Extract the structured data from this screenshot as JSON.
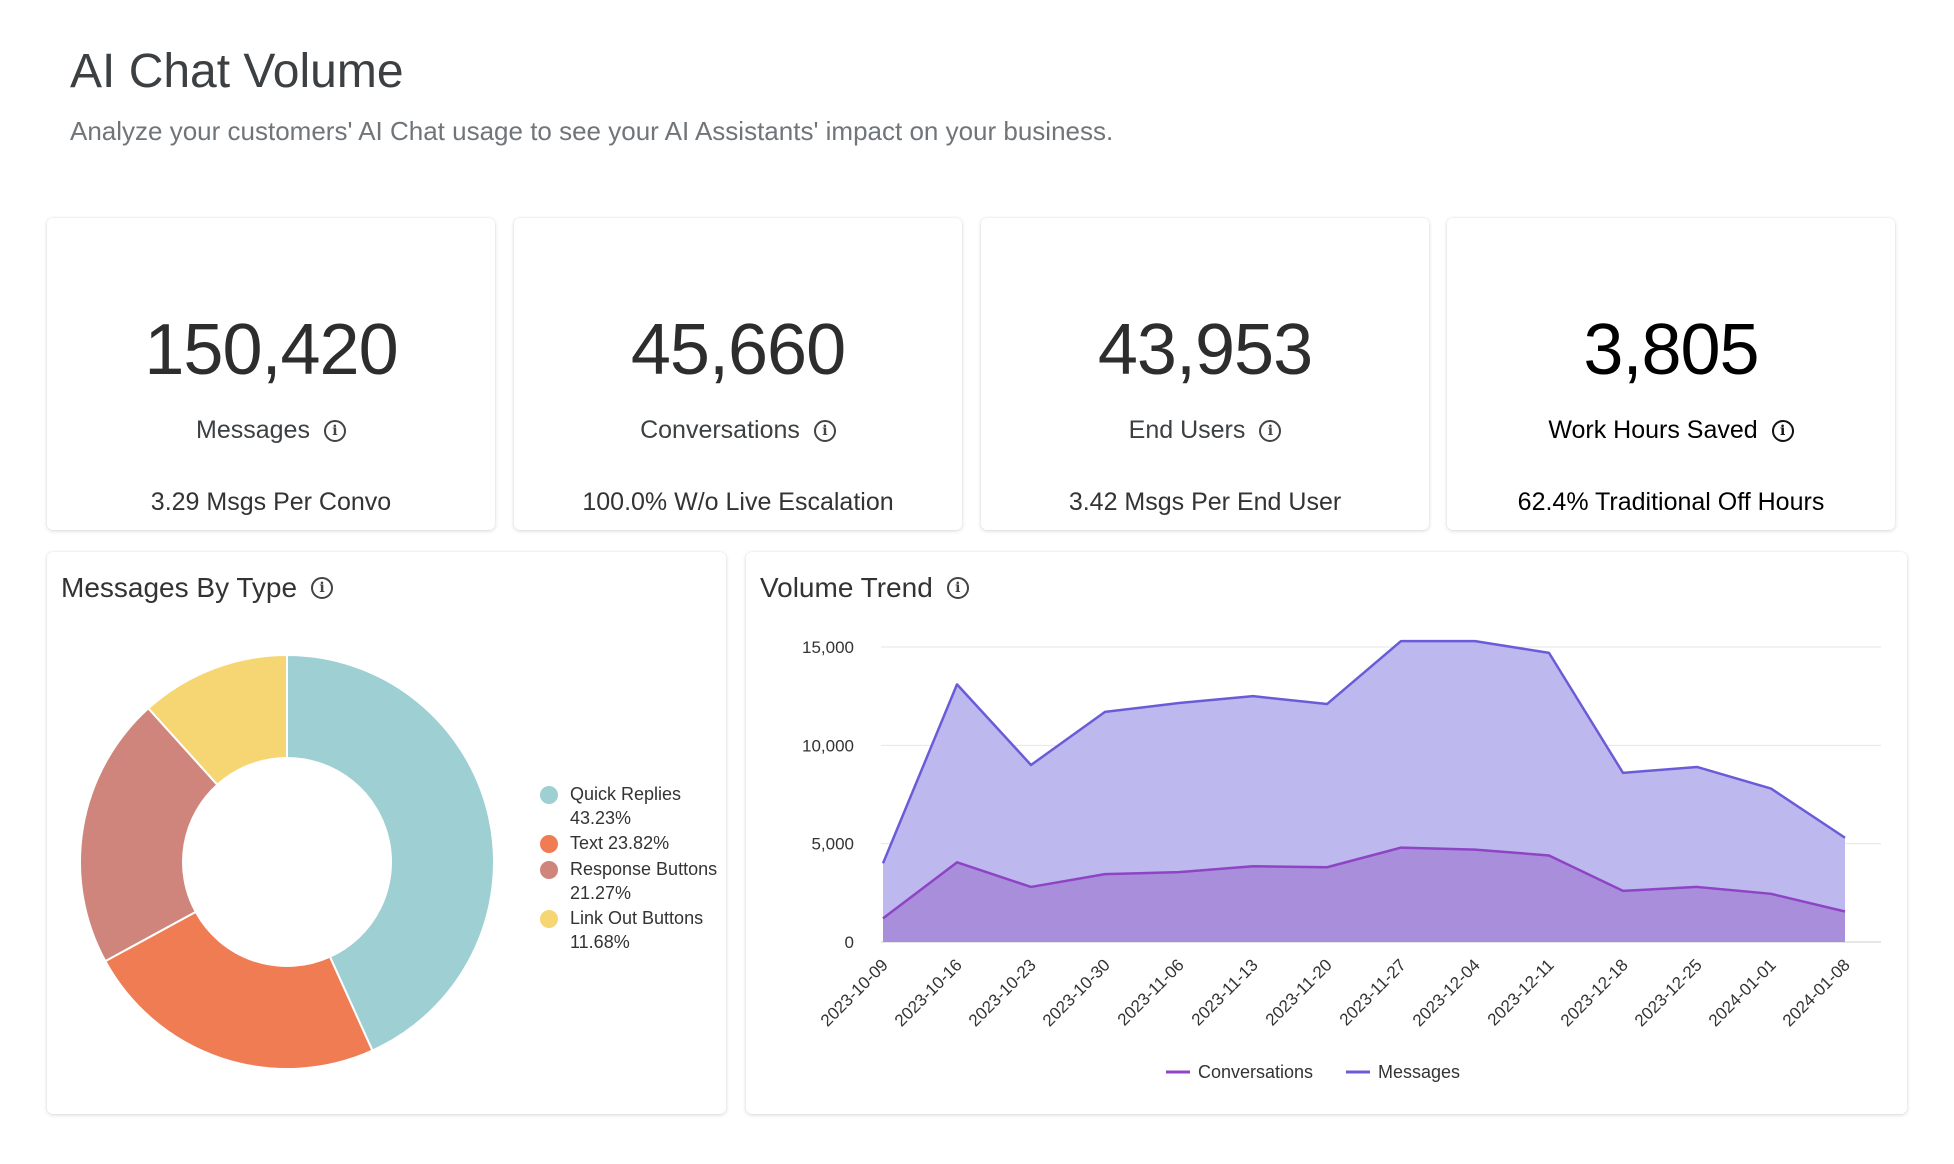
{
  "header": {
    "title": "AI Chat Volume",
    "subtitle": "Analyze your customers' AI Chat usage to see your AI Assistants' impact on your business."
  },
  "kpis": [
    {
      "value": "150,420",
      "label": "Messages",
      "sub": "3.29 Msgs Per Convo"
    },
    {
      "value": "45,660",
      "label": "Conversations",
      "sub": "100.0% W/o Live Escalation"
    },
    {
      "value": "43,953",
      "label": "End Users",
      "sub": "3.42 Msgs Per End User"
    },
    {
      "value": "3,805",
      "label": "Work Hours Saved",
      "sub": "62.4% Traditional Off Hours"
    }
  ],
  "messages_by_type": {
    "title": "Messages By Type",
    "legend": [
      {
        "label": "Quick Replies",
        "pct": "43.23%",
        "color": "#9dcfd3"
      },
      {
        "label": "Text",
        "pct": "23.82%",
        "color": "#ef7c53"
      },
      {
        "label": "Response Buttons",
        "pct": "21.27%",
        "color": "#cf857b"
      },
      {
        "label": "Link Out Buttons",
        "pct": "11.68%",
        "color": "#f6d672"
      }
    ]
  },
  "volume_trend": {
    "title": "Volume Trend",
    "legend": [
      {
        "label": "Conversations",
        "color": "#8e44c4"
      },
      {
        "label": "Messages",
        "color": "#6a5cd8"
      }
    ]
  },
  "chart_data": [
    {
      "type": "pie",
      "title": "Messages By Type",
      "donut": true,
      "categories": [
        "Quick Replies",
        "Text",
        "Response Buttons",
        "Link Out Buttons"
      ],
      "values": [
        43.23,
        23.82,
        21.27,
        11.68
      ],
      "colors": [
        "#9dcfd3",
        "#ef7c53",
        "#cf857b",
        "#f6d672"
      ],
      "legend_placement": "right"
    },
    {
      "type": "area",
      "title": "Volume Trend",
      "x": [
        "2023-10-09",
        "2023-10-16",
        "2023-10-23",
        "2023-10-30",
        "2023-11-06",
        "2023-11-13",
        "2023-11-20",
        "2023-11-27",
        "2023-12-04",
        "2023-12-11",
        "2023-12-18",
        "2023-12-25",
        "2024-01-01",
        "2024-01-08"
      ],
      "series": [
        {
          "name": "Messages",
          "color": "#6a5cd8",
          "fill": "#bdb9ee",
          "values": [
            4000,
            13100,
            9000,
            11700,
            12150,
            12500,
            12100,
            15300,
            15300,
            14700,
            8600,
            8900,
            7800,
            5300
          ]
        },
        {
          "name": "Conversations",
          "color": "#8e44c4",
          "fill": "#a98fdb",
          "values": [
            1200,
            4050,
            2800,
            3450,
            3550,
            3850,
            3800,
            4800,
            4700,
            4400,
            2600,
            2800,
            2450,
            1550
          ]
        }
      ],
      "ylim": [
        0,
        15000
      ],
      "yticks": [
        0,
        5000,
        10000,
        15000
      ],
      "ytick_labels": [
        "0",
        "5,000",
        "10,000",
        "15,000"
      ],
      "grid": true,
      "legend_placement": "bottom"
    }
  ]
}
